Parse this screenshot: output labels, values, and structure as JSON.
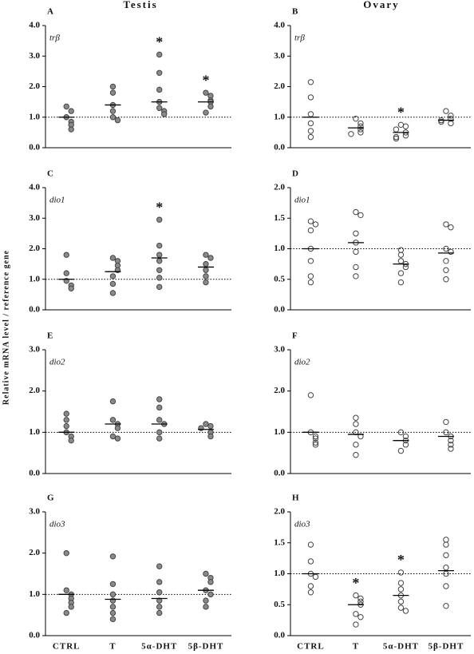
{
  "column_titles": [
    "Testis",
    "Ovary"
  ],
  "y_axis_label": "Relative mRNA level / reference gene",
  "categories": [
    "CTRL",
    "T",
    "5α-DHT",
    "5β-DHT"
  ],
  "chart_data": [
    {
      "type": "scatter",
      "label": "A",
      "gene": "trβ",
      "marker_fill": "#8a8a8a",
      "marker_edge": "#444444",
      "values": [
        [
          1.35,
          1.2,
          1.0,
          0.85,
          0.75,
          0.6
        ],
        [
          2.0,
          1.8,
          1.4,
          1.2,
          1.0,
          0.9
        ],
        [
          3.05,
          2.45,
          1.9,
          1.5,
          1.3,
          1.2,
          1.1
        ],
        [
          1.8,
          1.7,
          1.55,
          1.5,
          1.35,
          1.15
        ]
      ],
      "means": [
        1.0,
        1.4,
        1.5,
        1.5
      ],
      "reference_line": 1,
      "ylim": [
        0,
        4
      ],
      "yticks": [
        {
          "value": 0,
          "label": "0.0"
        },
        {
          "value": 1,
          "label": "1.0"
        },
        {
          "value": 2,
          "label": "2.0"
        },
        {
          "value": 3,
          "label": "3.0"
        },
        {
          "value": 4,
          "label": "4.0"
        }
      ],
      "annotations": [
        {
          "category": "5α-DHT",
          "text": "*"
        },
        {
          "category": "5β-DHT",
          "text": "*"
        }
      ]
    },
    {
      "type": "scatter",
      "label": "B",
      "gene": "trβ",
      "marker_fill": "none",
      "marker_edge": "#444444",
      "values": [
        [
          2.15,
          1.65,
          1.1,
          0.8,
          0.55,
          0.35
        ],
        [
          0.95,
          0.8,
          0.7,
          0.6,
          0.5,
          0.45
        ],
        [
          0.75,
          0.7,
          0.6,
          0.5,
          0.4,
          0.35,
          0.3
        ],
        [
          1.2,
          1.05,
          0.95,
          0.9,
          0.85,
          0.8
        ]
      ],
      "means": [
        1.0,
        0.65,
        0.5,
        0.9
      ],
      "reference_line": 1,
      "ylim": [
        0,
        4
      ],
      "yticks": [
        {
          "value": 0,
          "label": "0.0"
        },
        {
          "value": 1,
          "label": "1.0"
        },
        {
          "value": 2,
          "label": "2.0"
        },
        {
          "value": 3,
          "label": "3.0"
        },
        {
          "value": 4,
          "label": "4.0"
        }
      ],
      "annotations": [
        {
          "category": "5α-DHT",
          "text": "*"
        }
      ]
    },
    {
      "type": "scatter",
      "label": "C",
      "gene": "dio1",
      "marker_fill": "#8a8a8a",
      "marker_edge": "#444444",
      "values": [
        [
          1.8,
          1.2,
          0.95,
          0.8,
          0.7
        ],
        [
          1.7,
          1.6,
          1.45,
          1.3,
          1.1,
          0.85,
          0.55
        ],
        [
          2.95,
          2.1,
          1.8,
          1.6,
          1.3,
          1.05,
          0.75
        ],
        [
          1.8,
          1.7,
          1.5,
          1.3,
          1.1,
          0.9
        ]
      ],
      "means": [
        1.0,
        1.25,
        1.7,
        1.4
      ],
      "reference_line": 1,
      "ylim": [
        0,
        4
      ],
      "yticks": [
        {
          "value": 0,
          "label": "0.0"
        },
        {
          "value": 1,
          "label": "1.0"
        },
        {
          "value": 2,
          "label": "2.0"
        },
        {
          "value": 3,
          "label": "3.0"
        },
        {
          "value": 4,
          "label": "4.0"
        }
      ],
      "annotations": [
        {
          "category": "5α-DHT",
          "text": "*"
        }
      ]
    },
    {
      "type": "scatter",
      "label": "D",
      "gene": "dio1",
      "marker_fill": "none",
      "marker_edge": "#444444",
      "values": [
        [
          1.45,
          1.4,
          1.3,
          1.0,
          0.8,
          0.55,
          0.45
        ],
        [
          1.6,
          1.55,
          1.25,
          1.1,
          0.95,
          0.7,
          0.55
        ],
        [
          0.98,
          0.9,
          0.8,
          0.75,
          0.7,
          0.6,
          0.45
        ],
        [
          1.4,
          1.35,
          1.0,
          0.95,
          0.8,
          0.65,
          0.5
        ]
      ],
      "means": [
        1.0,
        1.1,
        0.75,
        0.93
      ],
      "reference_line": 1,
      "ylim": [
        0,
        2
      ],
      "yticks": [
        {
          "value": 0,
          "label": "0.0"
        },
        {
          "value": 0.5,
          "label": "0.5"
        },
        {
          "value": 1,
          "label": "1.0"
        },
        {
          "value": 1.5,
          "label": "1.5"
        },
        {
          "value": 2,
          "label": "2.0"
        }
      ],
      "annotations": []
    },
    {
      "type": "scatter",
      "label": "E",
      "gene": "dio2",
      "marker_fill": "#8a8a8a",
      "marker_edge": "#444444",
      "values": [
        [
          1.45,
          1.3,
          1.15,
          1.0,
          0.9,
          0.8
        ],
        [
          1.75,
          1.3,
          1.2,
          1.1,
          0.9,
          0.85
        ],
        [
          1.8,
          1.6,
          1.3,
          1.2,
          1.0,
          0.85
        ],
        [
          1.2,
          1.15,
          1.1,
          1.0,
          0.9
        ]
      ],
      "means": [
        1.0,
        1.2,
        1.2,
        1.07
      ],
      "reference_line": 1,
      "ylim": [
        0,
        3
      ],
      "yticks": [
        {
          "value": 0,
          "label": "0.0"
        },
        {
          "value": 1,
          "label": "1.0"
        },
        {
          "value": 2,
          "label": "2.0"
        },
        {
          "value": 3,
          "label": "3.0"
        }
      ],
      "annotations": []
    },
    {
      "type": "scatter",
      "label": "F",
      "gene": "dio2",
      "marker_fill": "none",
      "marker_edge": "#444444",
      "values": [
        [
          1.9,
          1.0,
          0.9,
          0.85,
          0.75,
          0.7
        ],
        [
          1.35,
          1.2,
          1.0,
          0.9,
          0.7,
          0.45
        ],
        [
          1.0,
          0.9,
          0.8,
          0.7,
          0.55
        ],
        [
          1.25,
          1.0,
          0.9,
          0.8,
          0.7,
          0.6
        ]
      ],
      "means": [
        1.0,
        0.95,
        0.8,
        0.9
      ],
      "reference_line": 1,
      "ylim": [
        0,
        3
      ],
      "yticks": [
        {
          "value": 0,
          "label": "0.0"
        },
        {
          "value": 1,
          "label": "1.0"
        },
        {
          "value": 2,
          "label": "2.0"
        },
        {
          "value": 3,
          "label": "3.0"
        }
      ],
      "annotations": []
    },
    {
      "type": "scatter",
      "label": "G",
      "gene": "dio3",
      "marker_fill": "#8a8a8a",
      "marker_edge": "#444444",
      "values": [
        [
          2.0,
          1.1,
          1.0,
          0.9,
          0.8,
          0.7,
          0.55
        ],
        [
          1.92,
          1.25,
          1.0,
          0.85,
          0.7,
          0.55,
          0.4
        ],
        [
          1.68,
          1.3,
          1.05,
          0.85,
          0.7,
          0.55
        ],
        [
          1.5,
          1.4,
          1.3,
          1.1,
          1.0,
          0.85,
          0.7
        ]
      ],
      "means": [
        1.0,
        0.88,
        0.9,
        1.1
      ],
      "reference_line": 1,
      "ylim": [
        0,
        3
      ],
      "yticks": [
        {
          "value": 0,
          "label": "0.0"
        },
        {
          "value": 1,
          "label": "1.0"
        },
        {
          "value": 2,
          "label": "2.0"
        },
        {
          "value": 3,
          "label": "3.0"
        }
      ],
      "annotations": []
    },
    {
      "type": "scatter",
      "label": "H",
      "gene": "dio3",
      "marker_fill": "none",
      "marker_edge": "#444444",
      "values": [
        [
          1.47,
          1.2,
          1.0,
          0.95,
          0.8,
          0.7
        ],
        [
          0.65,
          0.6,
          0.55,
          0.5,
          0.35,
          0.3,
          0.18
        ],
        [
          1.02,
          0.85,
          0.75,
          0.65,
          0.55,
          0.45,
          0.4
        ],
        [
          1.55,
          1.47,
          1.3,
          1.1,
          1.0,
          0.8,
          0.48
        ]
      ],
      "means": [
        1.0,
        0.5,
        0.65,
        1.05
      ],
      "reference_line": 1,
      "ylim": [
        0,
        2
      ],
      "yticks": [
        {
          "value": 0,
          "label": "0.0"
        },
        {
          "value": 0.5,
          "label": "0.5"
        },
        {
          "value": 1,
          "label": "1.0"
        },
        {
          "value": 1.5,
          "label": "1.5"
        },
        {
          "value": 2,
          "label": "2.0"
        }
      ],
      "annotations": [
        {
          "category": "T",
          "text": "*"
        },
        {
          "category": "5α-DHT",
          "text": "*"
        }
      ]
    }
  ]
}
